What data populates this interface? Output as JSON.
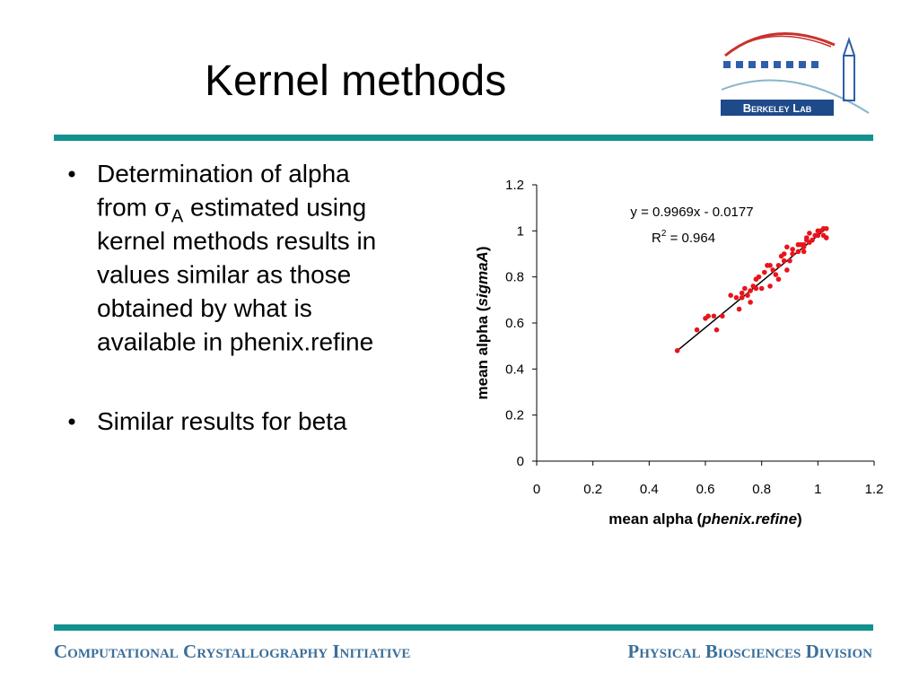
{
  "slide": {
    "title": "Kernel methods",
    "bullets": [
      {
        "lines": [
          {
            "text": "Determination of alpha"
          },
          {
            "text": "from ",
            "symbol": "σ",
            "sub": "A",
            "after": " estimated using"
          },
          {
            "text": "kernel methods results in"
          },
          {
            "text": "values similar as those"
          },
          {
            "text": "obtained by what is"
          },
          {
            "text": "available in phenix.refine"
          }
        ]
      },
      {
        "lines": [
          {
            "text": "Similar results for beta"
          }
        ]
      }
    ],
    "logo_text": "Berkeley Lab",
    "footer_left": "Computational Crystallography Initiative",
    "footer_right": "Physical Biosciences Division"
  },
  "chart_data": {
    "type": "scatter",
    "x_label": {
      "text": "mean alpha (",
      "italic": "phenix.refine",
      "end": ")"
    },
    "y_label": {
      "text": "mean alpha (",
      "italic": "sigmaA",
      "end": ")"
    },
    "equation": "y = 0.9969x - 0.0177",
    "r_squared": {
      "text": "R",
      "sup": "2",
      "after": " = 0.964"
    },
    "xlim": [
      0,
      1.2
    ],
    "ylim": [
      0,
      1.2
    ],
    "xticks": [
      0,
      0.2,
      0.4,
      0.6,
      0.8,
      1,
      1.2
    ],
    "yticks": [
      0,
      0.2,
      0.4,
      0.6,
      0.8,
      1,
      1.2
    ],
    "x": [
      0.5,
      0.57,
      0.6,
      0.61,
      0.63,
      0.64,
      0.66,
      0.71,
      0.72,
      0.69,
      0.73,
      0.73,
      0.74,
      0.75,
      0.76,
      0.77,
      0.78,
      0.79,
      0.8,
      0.81,
      0.82,
      0.83,
      0.84,
      0.85,
      0.86,
      0.86,
      0.88,
      0.88,
      0.89,
      0.9,
      0.91,
      0.91,
      0.93,
      0.93,
      0.94,
      0.95,
      0.96,
      0.96,
      0.97,
      0.98,
      0.99,
      1.0,
      1.0,
      1.01,
      1.02,
      1.02,
      1.03,
      1.03,
      1.03,
      0.83,
      0.76,
      0.78,
      0.87,
      0.89,
      0.95,
      0.97,
      0.95
    ],
    "series": [
      {
        "color": "#e8141b",
        "values": [
          0.48,
          0.57,
          0.62,
          0.63,
          0.63,
          0.57,
          0.63,
          0.71,
          0.66,
          0.72,
          0.71,
          0.73,
          0.75,
          0.72,
          0.69,
          0.76,
          0.79,
          0.8,
          0.75,
          0.82,
          0.85,
          0.76,
          0.83,
          0.81,
          0.79,
          0.85,
          0.87,
          0.9,
          0.83,
          0.87,
          0.9,
          0.92,
          0.94,
          0.91,
          0.94,
          0.94,
          0.96,
          0.97,
          0.95,
          0.96,
          0.98,
          0.98,
          1.0,
          1.0,
          1.01,
          0.98,
          0.97,
          1.01,
          0.97,
          0.85,
          0.74,
          0.75,
          0.89,
          0.93,
          0.91,
          0.99,
          0.93
        ]
      }
    ],
    "trendline": {
      "color": "#000000",
      "x": [
        0.5,
        1.03
      ],
      "values": [
        0.48,
        1.01
      ]
    }
  }
}
